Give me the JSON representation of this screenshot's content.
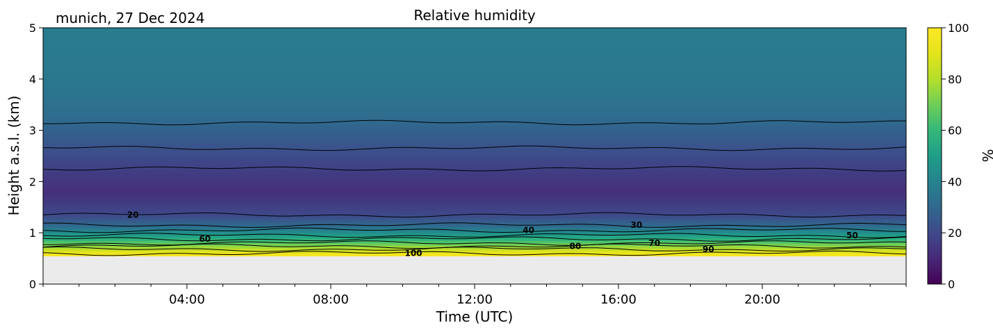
{
  "chart_data": {
    "type": "heatmap",
    "title": "Relative humidity",
    "location_label": "munich, 27 Dec 2024",
    "xlabel": "Time (UTC)",
    "ylabel": "Height a.s.l. (km)",
    "x_ticks": [
      "04:00",
      "08:00",
      "12:00",
      "16:00",
      "20:00"
    ],
    "x_tick_hours": [
      4,
      8,
      12,
      16,
      20
    ],
    "xlim_hours": [
      0,
      24
    ],
    "ylim_km": [
      0,
      5
    ],
    "y_ticks": [
      "0",
      "1",
      "2",
      "3",
      "4",
      "5"
    ],
    "colorbar": {
      "label": "%",
      "range": [
        0,
        100
      ],
      "ticks": [
        "0",
        "20",
        "40",
        "60",
        "80",
        "100"
      ],
      "colormap": "viridis"
    },
    "no_data_below_km": 0.55,
    "no_data_color": "#ebebeb",
    "profile": [
      {
        "height_km": 0.55,
        "rh": 100
      },
      {
        "height_km": 0.63,
        "rh": 90
      },
      {
        "height_km": 0.7,
        "rh": 80
      },
      {
        "height_km": 0.78,
        "rh": 70
      },
      {
        "height_km": 0.86,
        "rh": 60
      },
      {
        "height_km": 0.95,
        "rh": 50
      },
      {
        "height_km": 1.05,
        "rh": 40
      },
      {
        "height_km": 1.15,
        "rh": 30
      },
      {
        "height_km": 1.35,
        "rh": 20
      },
      {
        "height_km": 1.8,
        "rh": 12
      },
      {
        "height_km": 2.3,
        "rh": 18
      },
      {
        "height_km": 2.8,
        "rh": 25
      },
      {
        "height_km": 3.3,
        "rh": 32
      },
      {
        "height_km": 4.0,
        "rh": 36
      },
      {
        "height_km": 5.0,
        "rh": 38
      }
    ],
    "contours": [
      {
        "value": 20,
        "height_km": 1.35,
        "label": "20",
        "label_hour": 2.5
      },
      {
        "value": 30,
        "height_km": 1.15,
        "label": "30",
        "label_hour": 16.5
      },
      {
        "value": 40,
        "height_km": 1.05,
        "label": "40",
        "label_hour": 13.5
      },
      {
        "value": 50,
        "height_km": 0.95,
        "label": "50",
        "label_hour": 22.5
      },
      {
        "value": 60,
        "height_km": 0.88,
        "label": "60",
        "label_hour": 4.5
      },
      {
        "value": 70,
        "height_km": 0.8,
        "label": "70",
        "label_hour": 17.0
      },
      {
        "value": 80,
        "height_km": 0.74,
        "label": "80",
        "label_hour": 14.8
      },
      {
        "value": 90,
        "height_km": 0.68,
        "label": "90",
        "label_hour": 18.5
      },
      {
        "value": 100,
        "height_km": 0.6,
        "label": "100",
        "label_hour": 10.3
      },
      {
        "value": 20,
        "height_km": 2.25,
        "label": "",
        "label_hour": null
      },
      {
        "value": 30,
        "height_km": 2.65,
        "label": "",
        "label_hour": null
      },
      {
        "value": 30,
        "height_km": 3.15,
        "label": "",
        "label_hour": null
      }
    ]
  }
}
